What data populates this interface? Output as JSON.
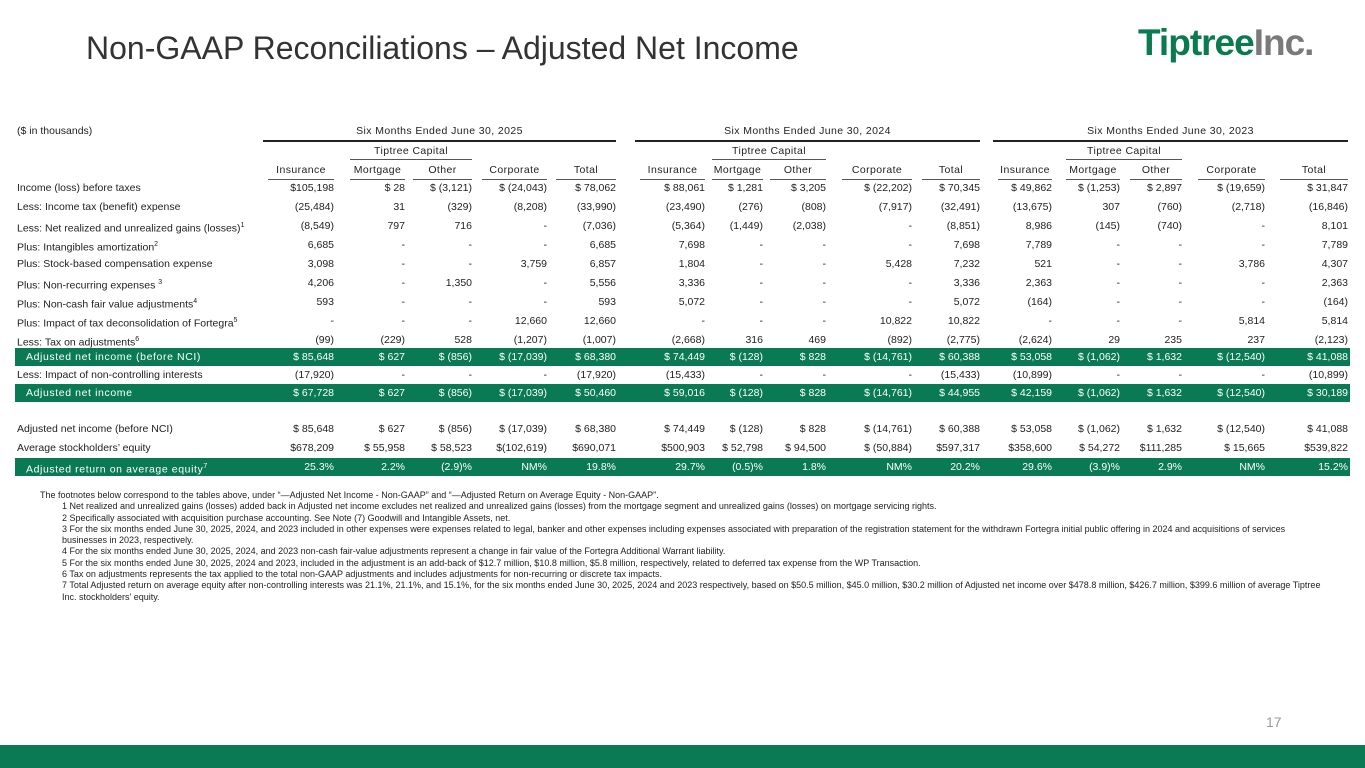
{
  "title": "Non-GAAP Reconciliations – Adjusted Net Income",
  "logo": {
    "part1": "Tiptree",
    "part2": "Inc."
  },
  "colors": {
    "brand_green": "#0a7a55",
    "logo_grey": "#7a7a7a"
  },
  "table": {
    "units": "($ in thousands)",
    "periods": [
      "Six Months Ended June 30, 2025",
      "Six Months Ended June 30, 2024",
      "Six Months Ended June 30, 2023"
    ],
    "subgroup": "Tiptree Capital",
    "columns": [
      "Insurance",
      "Mortgage",
      "Other",
      "Corporate",
      "Total"
    ],
    "rows": [
      {
        "label": "Income (loss) before taxes",
        "sup": "",
        "highlight": false,
        "values": [
          "$105,198",
          "$ 28",
          "$ (3,121)",
          "$ (24,043)",
          "$ 78,062",
          "$ 88,061",
          "$ 1,281",
          "$ 3,205",
          "$ (22,202)",
          "$ 70,345",
          "$ 49,862",
          "$ (1,253)",
          "$ 2,897",
          "$ (19,659)",
          "$ 31,847"
        ]
      },
      {
        "label": "Less: Income tax (benefit) expense",
        "sup": "",
        "highlight": false,
        "values": [
          "(25,484)",
          "31",
          "(329)",
          "(8,208)",
          "(33,990)",
          "(23,490)",
          "(276)",
          "(808)",
          "(7,917)",
          "(32,491)",
          "(13,675)",
          "307",
          "(760)",
          "(2,718)",
          "(16,846)"
        ]
      },
      {
        "label": "Less: Net realized and unrealized gains (losses)",
        "sup": "1",
        "highlight": false,
        "values": [
          "(8,549)",
          "797",
          "716",
          "-",
          "(7,036)",
          "(5,364)",
          "(1,449)",
          "(2,038)",
          "-",
          "(8,851)",
          "8,986",
          "(145)",
          "(740)",
          "-",
          "8,101"
        ]
      },
      {
        "label": "Plus: Intangibles amortization",
        "sup": "2",
        "highlight": false,
        "values": [
          "6,685",
          "-",
          "-",
          "-",
          "6,685",
          "7,698",
          "-",
          "-",
          "-",
          "7,698",
          "7,789",
          "-",
          "-",
          "-",
          "7,789"
        ]
      },
      {
        "label": "Plus: Stock-based compensation expense",
        "sup": "",
        "highlight": false,
        "values": [
          "3,098",
          "-",
          "-",
          "3,759",
          "6,857",
          "1,804",
          "-",
          "-",
          "5,428",
          "7,232",
          "521",
          "-",
          "-",
          "3,786",
          "4,307"
        ]
      },
      {
        "label": "Plus: Non-recurring expenses ",
        "sup": "3",
        "highlight": false,
        "values": [
          "4,206",
          "-",
          "1,350",
          "-",
          "5,556",
          "3,336",
          "-",
          "-",
          "-",
          "3,336",
          "2,363",
          "-",
          "-",
          "-",
          "2,363"
        ]
      },
      {
        "label": "Plus: Non-cash fair value adjustments",
        "sup": "4",
        "highlight": false,
        "values": [
          "593",
          "-",
          "-",
          "-",
          "593",
          "5,072",
          "-",
          "-",
          "-",
          "5,072",
          "(164)",
          "-",
          "-",
          "-",
          "(164)"
        ]
      },
      {
        "label": "Plus: Impact of tax deconsolidation of Fortegra",
        "sup": "5",
        "highlight": false,
        "values": [
          "-",
          "-",
          "-",
          "12,660",
          "12,660",
          "-",
          "-",
          "-",
          "10,822",
          "10,822",
          "-",
          "-",
          "-",
          "5,814",
          "5,814"
        ]
      },
      {
        "label": "Less: Tax on adjustments",
        "sup": "6",
        "highlight": false,
        "values": [
          "(99)",
          "(229)",
          "528",
          "(1,207)",
          "(1,007)",
          "(2,668)",
          "316",
          "469",
          "(892)",
          "(2,775)",
          "(2,624)",
          "29",
          "235",
          "237",
          "(2,123)"
        ]
      },
      {
        "label": "Adjusted net income (before NCI)",
        "sup": "",
        "highlight": true,
        "values": [
          "$ 85,648",
          "$ 627",
          "$ (856)",
          "$ (17,039)",
          "$ 68,380",
          "$ 74,449",
          "$ (128)",
          "$ 828",
          "$ (14,761)",
          "$ 60,388",
          "$ 53,058",
          "$ (1,062)",
          "$ 1,632",
          "$ (12,540)",
          "$ 41,088"
        ]
      },
      {
        "label": "Less: Impact of non-controlling interests",
        "sup": "",
        "highlight": false,
        "values": [
          "(17,920)",
          "-",
          "-",
          "-",
          "(17,920)",
          "(15,433)",
          "-",
          "-",
          "-",
          "(15,433)",
          "(10,899)",
          "-",
          "-",
          "-",
          "(10,899)"
        ]
      },
      {
        "label": "Adjusted net income",
        "sup": "",
        "highlight": true,
        "values": [
          "$ 67,728",
          "$ 627",
          "$ (856)",
          "$ (17,039)",
          "$ 50,460",
          "$ 59,016",
          "$ (128)",
          "$ 828",
          "$ (14,761)",
          "$ 44,955",
          "$ 42,159",
          "$ (1,062)",
          "$ 1,632",
          "$ (12,540)",
          "$ 30,189"
        ]
      },
      {
        "label": "Adjusted net income (before NCI)",
        "sup": "",
        "highlight": false,
        "values": [
          "$ 85,648",
          "$ 627",
          "$ (856)",
          "$ (17,039)",
          "$ 68,380",
          "$ 74,449",
          "$ (128)",
          "$ 828",
          "$ (14,761)",
          "$ 60,388",
          "$ 53,058",
          "$ (1,062)",
          "$ 1,632",
          "$ (12,540)",
          "$ 41,088"
        ]
      },
      {
        "label": "Average stockholders’ equity",
        "sup": "",
        "highlight": false,
        "values": [
          "$678,209",
          "$ 55,958",
          "$ 58,523",
          "$(102,619)",
          "$690,071",
          "$500,903",
          "$ 52,798",
          "$ 94,500",
          "$ (50,884)",
          "$597,317",
          "$358,600",
          "$ 54,272",
          "$111,285",
          "$ 15,665",
          "$539,822"
        ]
      },
      {
        "label": "Adjusted return on average equity",
        "sup": "7",
        "highlight": true,
        "values": [
          "25.3%",
          "2.2%",
          "(2.9)%",
          "NM%",
          "19.8%",
          "29.7%",
          "(0.5)%",
          "1.8%",
          "NM%",
          "20.2%",
          "29.6%",
          "(3.9)%",
          "2.9%",
          "NM%",
          "15.2%"
        ]
      }
    ]
  },
  "footnotes": {
    "intro": "The footnotes below correspond to the tables above, under “—Adjusted Net Income - Non-GAAP” and “—Adjusted Return on Average Equity - Non-GAAP”.",
    "notes": [
      "1 Net realized and unrealized gains (losses) added back in Adjusted net income excludes net realized and unrealized gains (losses) from the mortgage segment and unrealized gains (losses) on mortgage servicing rights.",
      "2 Specifically associated with acquisition purchase accounting. See Note (7) Goodwill and Intangible Assets, net.",
      "3 For the six months ended June 30, 2025, 2024, and 2023 included in other expenses were expenses related to legal, banker and other expenses including expenses associated with preparation of the registration statement for the withdrawn Fortegra initial public offering in 2024 and acquisitions of services businesses in 2023, respectively.",
      "4 For the six months ended June 30, 2025, 2024, and 2023 non-cash fair-value adjustments represent a change in fair value of the Fortegra Additional Warrant liability.",
      "5 For the six months ended June 30, 2025, 2024 and 2023, included in the adjustment is an add-back of $12.7 million, $10.8 million, $5.8 million, respectively, related to deferred tax expense from the WP Transaction.",
      "6 Tax on adjustments represents the tax applied to the total non-GAAP adjustments and includes adjustments for non-recurring or discrete tax impacts.",
      "7 Total Adjusted return on average equity after non-controlling interests was 21.1%, 21.1%, and 15.1%, for the six months ended June 30, 2025, 2024 and 2023 respectively, based on $50.5 million, $45.0 million, $30.2 million of Adjusted net income over $478.8 million, $426.7 million, $399.6 million of average Tiptree Inc. stockholders’ equity."
    ]
  },
  "page_number": "17"
}
